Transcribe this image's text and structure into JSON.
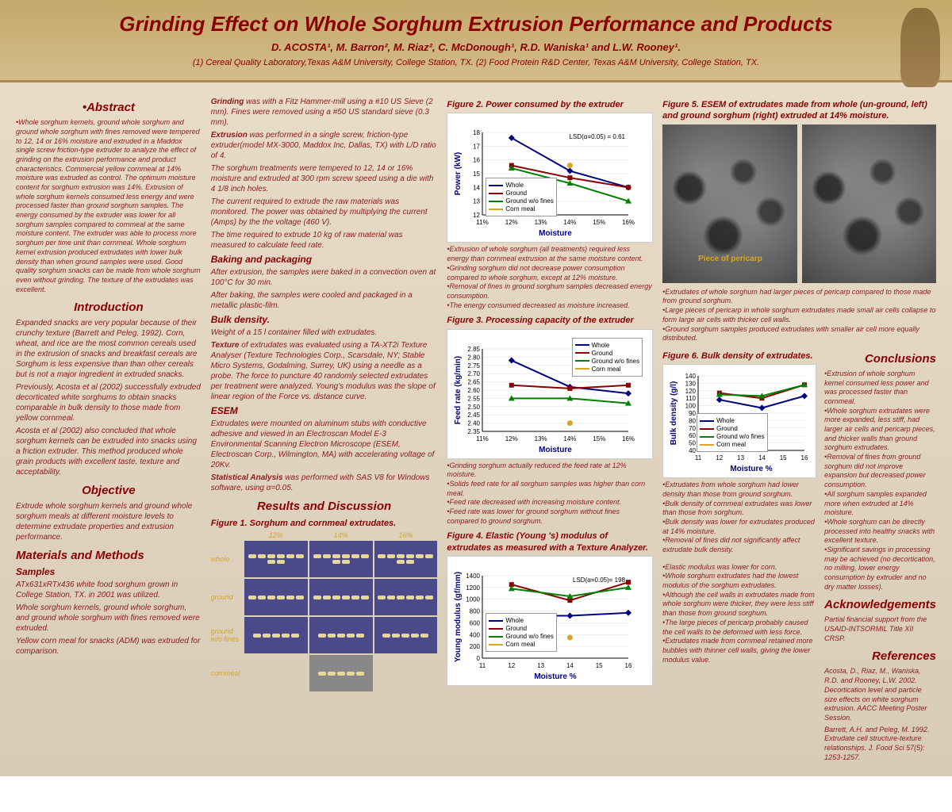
{
  "header": {
    "title": "Grinding Effect on Whole Sorghum Extrusion Performance and Products",
    "authors": "D. ACOSTA¹, M. Barron², M. Riaz², C. McDonough¹, R.D. Waniska¹ and L.W. Rooney¹.",
    "affil": "(1) Cereal Quality Laboratory,Texas A&M University, College Station, TX. (2) Food Protein R&D Center, Texas A&M University, College Station, TX."
  },
  "abstract": {
    "heading": "•Abstract",
    "text": "•Whole sorghum kernels, ground whole sorghum and ground whole sorghum with fines removed were tempered to 12, 14 or 16% moisture and extruded in a Maddox single screw friction-type extruder to analyze the effect of grinding on the extrusion performance and product characteristics. Commercial yellow cornmeal at 14% moisture was extruded as control. The optimum moisture content for sorghum extrusion was 14%. Extrusion of whole sorghum kernels consumed less energy and were processed faster than ground sorghum samples. The energy consumed by the extruder was lower for all sorghum samples compared to cornmeal at the same moisture content. The extruder was able to process more sorghum per time unit than cornmeal. Whole sorghum kernel extrusion produced extrudates with lower bulk density than when ground samples were used. Good quality sorghum snacks can be made from whole sorghum even without grinding. The texture of the extrudates was excellent."
  },
  "intro": {
    "heading": "Introduction",
    "p1": "Expanded snacks are very popular because of their crunchy texture (Barrett and Peleg, 1992). Corn, wheat, and rice are the most common cereals used in the extrusion of snacks and breakfast cereals are Sorghum is less expensive than than other cereals but is not a major ingredient in extruded snacks.",
    "p2": "Previously, Acosta et al (2002) successfully extruded decorticated white sorghums to obtain snacks comparable in bulk density to those made from yellow cornmeal.",
    "p3": "Acosta et al (2002) also concluded that whole sorghum kernels can be extruded into snacks using a friction extruder. This method produced whole grain products with excellent taste, texture and acceptability."
  },
  "objective": {
    "heading": "Objective",
    "text": "Extrude whole sorghum kernels and ground whole sorghum meals at different moisture levels to determine extrudate properties and extrusion performance."
  },
  "methods": {
    "heading": "Materials and Methods",
    "samples_h": "Samples",
    "p1": "ATx631xRTx436 white food sorghum grown in College Station, TX. in 2001 was utilized.",
    "p2": "Whole sorghum kernels, ground whole sorghum, and ground whole sorghum with fines removed were extruded.",
    "p3": "Yellow corn meal for snacks (ADM) was extruded for comparison.",
    "grind_h": "Grinding",
    "grind": " was with a Fitz Hammer-mill using a #10 US Sieve (2 mm). Fines were removed using a #50 US standard sieve (0.3 mm).",
    "ext_h": "Extrusion",
    "ext1": " was performed in a single screw, friction-type extruder(model MX-3000, Maddox Inc, Dallas, TX) with L/D ratio of 4.",
    "ext2": "The sorghum treatments were tempered to 12, 14 or 16% moisture and extruded at 300 rpm screw speed using a die with 4 1/8 inch holes.",
    "ext3": "The current required to extrude the raw materials was monitored. The power was obtained by multiplying the current (Amps) by the the voltage (460 V).",
    "ext4": "The time required to extrude 10 kg of raw material was measured to calculate feed rate.",
    "bake_h": "Baking and packaging",
    "bake1": "After extrusion, the samples were baked in a convection oven at 100°C for 30 min.",
    "bake2": "After baking, the samples were cooled and packaged in a metallic plastic-film.",
    "bd_h": "Bulk density.",
    "bd": "Weight of a 15 l container filled with extrudates.",
    "tex_h": "Texture",
    "tex": " of extrudates was evaluated using a TA-XT2i Texture Analyser (Texture Technologies Corp., Scarsdale, NY; Stable Micro Systems, Godalming, Surrey, UK) using a needle as a probe. The force to puncture 40 randomly selected extrudates per treatment were analyzed. Young's modulus was the slope of linear region of the Force vs. distance curve.",
    "esem_h": "ESEM",
    "esem": "Extrudates were mounted on aluminum stubs with conductive adhesive and viewed in an Electroscan Model E-3 Environmental Scanning Electron Microscope (ESEM, Electroscan Corp., Wilmington, MA) with accelerating voltage of 20Kv.",
    "stat_h": "Statistical Analysis",
    "stat": " was performed with SAS V8 for Windows software, using α=0.05."
  },
  "results_heading": "Results and Discussion",
  "fig1": {
    "title": "Figure 1. Sorghum and cornmeal extrudates.",
    "cols": [
      "12%",
      "14%",
      "16%"
    ],
    "rows": [
      "whole",
      "ground",
      "ground w/o fines",
      "cornmeal"
    ]
  },
  "fig2": {
    "title": "Figure 2. Power consumed by the extruder",
    "type": "line",
    "xlabel": "Moisture",
    "ylabel": "Power (kW)",
    "xticks": [
      "11%",
      "12%",
      "13%",
      "14%",
      "15%",
      "16%"
    ],
    "ylim": [
      12,
      18
    ],
    "ytick_step": 1,
    "lsd": "LSD(α=0.05) = 0.61",
    "series": [
      {
        "name": "Whole",
        "color": "#000080",
        "marker": "diamond",
        "values": [
          17.6,
          15.2,
          14.0
        ]
      },
      {
        "name": "Ground",
        "color": "#8b0000",
        "marker": "square",
        "values": [
          15.6,
          14.7,
          14.0
        ]
      },
      {
        "name": "Ground w/o fines",
        "color": "#008000",
        "marker": "triangle",
        "values": [
          15.4,
          14.3,
          13.0
        ]
      },
      {
        "name": "Corn meal",
        "color": "#daa520",
        "marker": "circle",
        "values": [
          null,
          15.6,
          null
        ]
      }
    ],
    "xvals": [
      12,
      14,
      16
    ],
    "notes": "•Extrusion of whole sorghum (all treatments) required less energy than cornmeal extrusion at the same moisture content.\n•Grinding sorghum did not decrease power consumption compared to whole sorghum, except at 12% moisture.\n•Removal of fines in ground sorghum samples decreased energy consumption.\n•The energy consumed decreased as moisture increased."
  },
  "fig3": {
    "title": "Figure 3. Processing capacity of the extruder",
    "type": "line",
    "xlabel": "Moisture",
    "ylabel": "Feed rate (kg/min)",
    "xticks": [
      "11%",
      "12%",
      "13%",
      "14%",
      "15%",
      "16%"
    ],
    "ylim": [
      2.35,
      2.85
    ],
    "ytick_step": 0.05,
    "series": [
      {
        "name": "Whole",
        "color": "#000080",
        "marker": "diamond",
        "values": [
          2.78,
          2.62,
          2.58
        ]
      },
      {
        "name": "Ground",
        "color": "#8b0000",
        "marker": "square",
        "values": [
          2.63,
          2.61,
          2.63
        ]
      },
      {
        "name": "Ground w/o fines",
        "color": "#008000",
        "marker": "triangle",
        "values": [
          2.55,
          2.55,
          2.52
        ]
      },
      {
        "name": "Corn meal",
        "color": "#daa520",
        "marker": "circle",
        "values": [
          null,
          2.4,
          null
        ]
      }
    ],
    "xvals": [
      12,
      14,
      16
    ],
    "notes": "•Grinding sorghum actually reduced the feed rate at 12% moisture.\n•Solids feed rate for all sorghum samples was higher than corn meal.\n•Feed rate decreased with increasing moisture content.\n•Feed rate was lower for ground sorghum without fines compared to ground sorghum."
  },
  "fig4": {
    "title": "Figure 4. Elastic (Young 's) modulus of extrudates as measured with a Texture Analyzer.",
    "type": "line",
    "xlabel": "Moisture %",
    "ylabel": "Young modulus (gf/mm)",
    "xticks": [
      "11",
      "12",
      "13",
      "14",
      "15",
      "16"
    ],
    "ylim": [
      0,
      1400
    ],
    "ytick_step": 200,
    "lsd": "LSD(α=0.05)= 198",
    "series": [
      {
        "name": "Whole",
        "color": "#000080",
        "marker": "diamond",
        "values": [
          720,
          720,
          770
        ]
      },
      {
        "name": "Ground",
        "color": "#8b0000",
        "marker": "square",
        "values": [
          1250,
          980,
          1290
        ]
      },
      {
        "name": "Ground w/o fines",
        "color": "#008000",
        "marker": "triangle",
        "values": [
          1180,
          1050,
          1200
        ]
      },
      {
        "name": "Corn meal",
        "color": "#daa520",
        "marker": "circle",
        "values": [
          null,
          350,
          null
        ]
      }
    ],
    "xvals": [
      12,
      14,
      16
    ]
  },
  "fig4_notes1": "•Elastic modulus was lower for corn.\n•Whole sorghum extrudates had the lowest modulus of the sorghum extrudates.\n•Although the cell walls in extrudates made from whole sorghum were thicker, they were less stiff than those from ground sorghum.\n•The large pieces of pericarp probably caused the cell walls to be deformed with less force.\n•Extrudates made from cornmeal retained more bubbles with thinner cell walls, giving the lower modulus value.",
  "fig5": {
    "title": "Figure 5. ESEM of extrudates made from whole (un-ground, left) and ground sorghum (right) extruded at 14% moisture.",
    "pericarp": "Piece of pericarp",
    "notes": "•Extrudates of whole sorghum had larger pieces of pericarp compared to those made from ground sorghum.\n•Large pieces of pericarp in whole sorghum extrudates made small air cells collapse to form large air cells with thicker cell walls.\n•Ground sorghum samples produced extrudates with smaller air cell more equally distributed."
  },
  "fig6": {
    "title": "Figure 6. Bulk density of extrudates.",
    "type": "line",
    "xlabel": "Moisture %",
    "ylabel": "Bulk density (g/l)",
    "xticks": [
      "11",
      "12",
      "13",
      "14",
      "15",
      "16"
    ],
    "ylim": [
      40,
      140
    ],
    "ytick_step": 10,
    "series": [
      {
        "name": "Whole",
        "color": "#000080",
        "marker": "diamond",
        "values": [
          108,
          97,
          113
        ]
      },
      {
        "name": "Ground",
        "color": "#8b0000",
        "marker": "square",
        "values": [
          117,
          110,
          128
        ]
      },
      {
        "name": "Ground w/o fines",
        "color": "#008000",
        "marker": "triangle",
        "values": [
          115,
          113,
          128
        ]
      },
      {
        "name": "Corn meal",
        "color": "#daa520",
        "marker": "circle",
        "values": [
          null,
          50,
          null
        ]
      }
    ],
    "xvals": [
      12,
      14,
      16
    ],
    "notes": "•Extrudates from whole sorghum had lower density than those from ground sorghum.\n•Bulk density of cornmeal extrudates was lower than those from sorghum.\n•Bulk density was lower for extrudates produced at 14% moisture.\n•Removal of fines did not significantly affect extrudate bulk density."
  },
  "conclusions": {
    "heading": "Conclusions",
    "text": "•Extrusion of whole sorghum kernel consumed less power and was processed faster than cornmeal.\n•Whole sorghum extrudates were more expanded, less stiff, had larger air cells and pericarp pieces, and thicker walls than ground sorghum extrudates.\n•Removal of fines from ground sorghum did not improve expansion but decreased power consumption.\n•All sorghum samples expanded more when extruded at 14% moisture.\n•Whole sorghum can be directly processed into healthy snacks with excellent texture.\n•Significant savings in processing may be achieved (no decortication, no milling, lower energy consumption by extruder and no dry matter losses)."
  },
  "ack": {
    "heading": "Acknowledgements",
    "text": "Partial financial support from the USAID-INTSORMIL Title XII CRSP."
  },
  "refs": {
    "heading": "References",
    "r1": "Acosta, D., Riaz, M., Waniska, R.D. and Rooney, L.W. 2002. Decortication level and particle size effects on white sorghum extrusion. AACC Meeting Poster Session.",
    "r2": "Barrett, A.H. and Peleg, M. 1992. Extrudate cell structure-texture relationships. J. Food Sci 57(5): 1253-1257."
  },
  "legend_names": [
    "Whole",
    "Ground",
    "Ground w/o fines",
    "Corn meal"
  ],
  "colors": {
    "whole": "#000080",
    "ground": "#8b0000",
    "nofines": "#008000",
    "corn": "#daa520"
  }
}
